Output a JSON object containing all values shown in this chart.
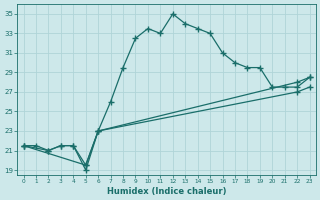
{
  "xlabel": "Humidex (Indice chaleur)",
  "bg_color": "#cde8ea",
  "grid_color": "#b0d4d8",
  "line_color": "#1a6e6a",
  "xlim": [
    -0.5,
    23.5
  ],
  "ylim": [
    18.5,
    36.0
  ],
  "xticks": [
    0,
    1,
    2,
    3,
    4,
    5,
    6,
    7,
    8,
    9,
    10,
    11,
    12,
    13,
    14,
    15,
    16,
    17,
    18,
    19,
    20,
    21,
    22,
    23
  ],
  "yticks": [
    19,
    21,
    23,
    25,
    27,
    29,
    31,
    33,
    35
  ],
  "line1_x": [
    0,
    1,
    2,
    3,
    4,
    5,
    6,
    7,
    8,
    9,
    10,
    11,
    12,
    13,
    14,
    15,
    16,
    17,
    18,
    19,
    20,
    21,
    22,
    23
  ],
  "line1_y": [
    21.5,
    21.5,
    21.0,
    21.5,
    21.5,
    19.0,
    23.0,
    26.0,
    29.5,
    32.5,
    33.5,
    33.0,
    35.0,
    34.0,
    33.5,
    33.0,
    31.0,
    30.0,
    29.5,
    29.5,
    27.5,
    27.5,
    27.5,
    28.5
  ],
  "line2_x": [
    0,
    2,
    3,
    4,
    5,
    6,
    22,
    23
  ],
  "line2_y": [
    21.5,
    21.0,
    21.5,
    21.5,
    19.5,
    23.0,
    28.0,
    28.5
  ],
  "line3_x": [
    0,
    5,
    6,
    22,
    23
  ],
  "line3_y": [
    21.5,
    19.5,
    23.0,
    27.0,
    27.5
  ]
}
